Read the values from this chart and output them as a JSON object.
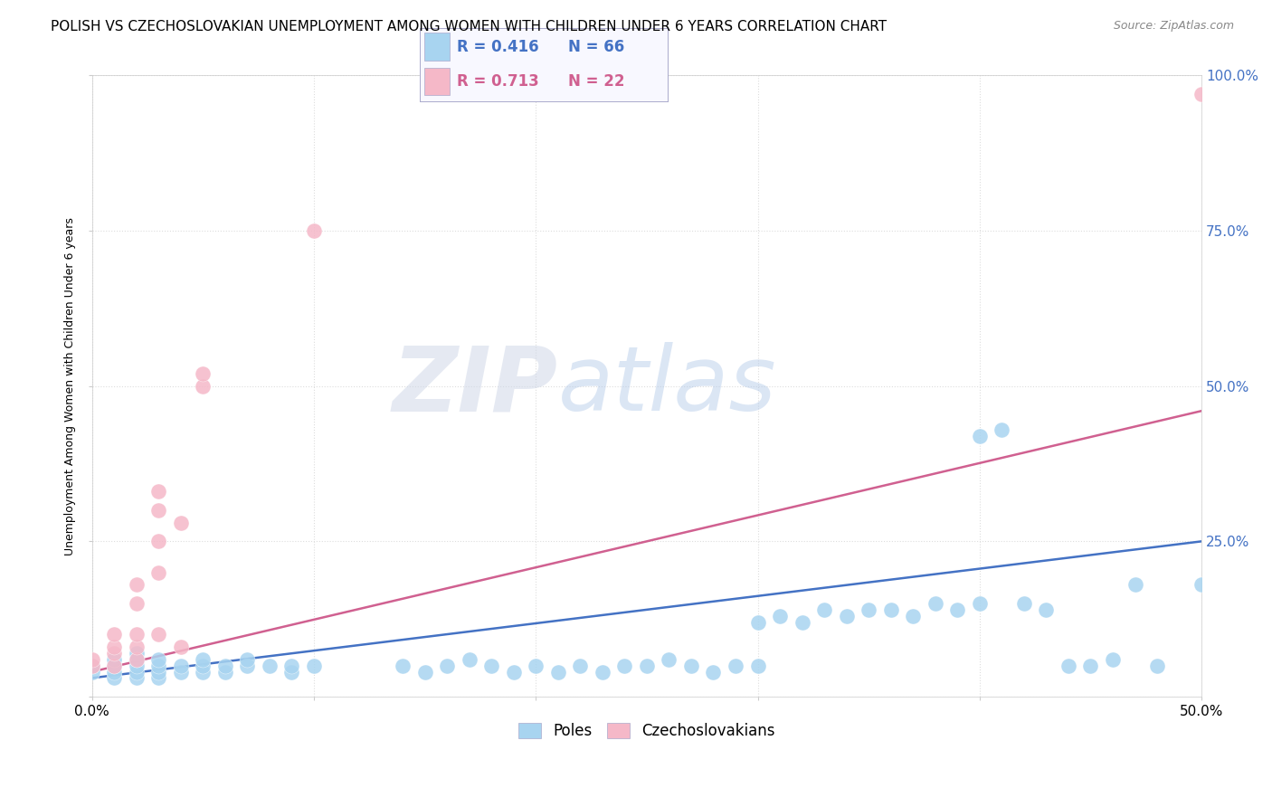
{
  "title": "POLISH VS CZECHOSLOVAKIAN UNEMPLOYMENT AMONG WOMEN WITH CHILDREN UNDER 6 YEARS CORRELATION CHART",
  "source": "Source: ZipAtlas.com",
  "ylabel": "Unemployment Among Women with Children Under 6 years",
  "watermark_zip": "ZIP",
  "watermark_atlas": "atlas",
  "xlim": [
    0.0,
    0.5
  ],
  "ylim": [
    0.0,
    1.0
  ],
  "xtick_positions": [
    0.0,
    0.1,
    0.2,
    0.3,
    0.4,
    0.5
  ],
  "xtick_labels": [
    "0.0%",
    "",
    "",
    "",
    "",
    "50.0%"
  ],
  "ytick_positions": [
    0.0,
    0.25,
    0.5,
    0.75,
    1.0
  ],
  "ytick_labels": [
    "",
    "25.0%",
    "50.0%",
    "75.0%",
    "100.0%"
  ],
  "blue_R": 0.416,
  "blue_N": 66,
  "pink_R": 0.713,
  "pink_N": 22,
  "blue_color": "#a8d4f0",
  "pink_color": "#f5b8c8",
  "blue_line_color": "#4472c4",
  "pink_line_color": "#d06090",
  "blue_scatter": [
    [
      0.0,
      0.04
    ],
    [
      0.0,
      0.05
    ],
    [
      0.01,
      0.03
    ],
    [
      0.01,
      0.04
    ],
    [
      0.01,
      0.05
    ],
    [
      0.01,
      0.06
    ],
    [
      0.02,
      0.03
    ],
    [
      0.02,
      0.04
    ],
    [
      0.02,
      0.05
    ],
    [
      0.02,
      0.07
    ],
    [
      0.02,
      0.06
    ],
    [
      0.03,
      0.03
    ],
    [
      0.03,
      0.04
    ],
    [
      0.03,
      0.05
    ],
    [
      0.03,
      0.06
    ],
    [
      0.04,
      0.04
    ],
    [
      0.04,
      0.05
    ],
    [
      0.05,
      0.04
    ],
    [
      0.05,
      0.05
    ],
    [
      0.05,
      0.06
    ],
    [
      0.06,
      0.04
    ],
    [
      0.06,
      0.05
    ],
    [
      0.07,
      0.05
    ],
    [
      0.07,
      0.06
    ],
    [
      0.08,
      0.05
    ],
    [
      0.09,
      0.04
    ],
    [
      0.09,
      0.05
    ],
    [
      0.1,
      0.05
    ],
    [
      0.14,
      0.05
    ],
    [
      0.15,
      0.04
    ],
    [
      0.16,
      0.05
    ],
    [
      0.17,
      0.06
    ],
    [
      0.18,
      0.05
    ],
    [
      0.19,
      0.04
    ],
    [
      0.2,
      0.05
    ],
    [
      0.21,
      0.04
    ],
    [
      0.22,
      0.05
    ],
    [
      0.23,
      0.04
    ],
    [
      0.24,
      0.05
    ],
    [
      0.25,
      0.05
    ],
    [
      0.26,
      0.06
    ],
    [
      0.27,
      0.05
    ],
    [
      0.28,
      0.04
    ],
    [
      0.29,
      0.05
    ],
    [
      0.3,
      0.05
    ],
    [
      0.3,
      0.12
    ],
    [
      0.31,
      0.13
    ],
    [
      0.32,
      0.12
    ],
    [
      0.33,
      0.14
    ],
    [
      0.34,
      0.13
    ],
    [
      0.35,
      0.14
    ],
    [
      0.36,
      0.14
    ],
    [
      0.37,
      0.13
    ],
    [
      0.38,
      0.15
    ],
    [
      0.39,
      0.14
    ],
    [
      0.4,
      0.42
    ],
    [
      0.4,
      0.15
    ],
    [
      0.41,
      0.43
    ],
    [
      0.42,
      0.15
    ],
    [
      0.43,
      0.14
    ],
    [
      0.44,
      0.05
    ],
    [
      0.45,
      0.05
    ],
    [
      0.46,
      0.06
    ],
    [
      0.47,
      0.18
    ],
    [
      0.48,
      0.05
    ],
    [
      0.5,
      0.18
    ]
  ],
  "pink_scatter": [
    [
      0.0,
      0.05
    ],
    [
      0.0,
      0.06
    ],
    [
      0.01,
      0.05
    ],
    [
      0.01,
      0.07
    ],
    [
      0.01,
      0.08
    ],
    [
      0.01,
      0.1
    ],
    [
      0.02,
      0.06
    ],
    [
      0.02,
      0.08
    ],
    [
      0.02,
      0.1
    ],
    [
      0.02,
      0.15
    ],
    [
      0.02,
      0.18
    ],
    [
      0.03,
      0.1
    ],
    [
      0.03,
      0.2
    ],
    [
      0.03,
      0.25
    ],
    [
      0.03,
      0.3
    ],
    [
      0.03,
      0.33
    ],
    [
      0.04,
      0.08
    ],
    [
      0.04,
      0.28
    ],
    [
      0.05,
      0.5
    ],
    [
      0.05,
      0.52
    ],
    [
      0.1,
      0.75
    ],
    [
      0.5,
      0.97
    ]
  ],
  "blue_line_x": [
    0.0,
    0.5
  ],
  "blue_line_y": [
    0.03,
    0.25
  ],
  "pink_line_x": [
    0.0,
    0.5
  ],
  "pink_line_y": [
    0.04,
    0.46
  ],
  "background_color": "#ffffff",
  "grid_color": "#dddddd",
  "legend_box_color": "#f0f0ff",
  "title_fontsize": 11,
  "axis_label_fontsize": 9,
  "tick_fontsize": 11,
  "right_tick_color": "#4472c4"
}
